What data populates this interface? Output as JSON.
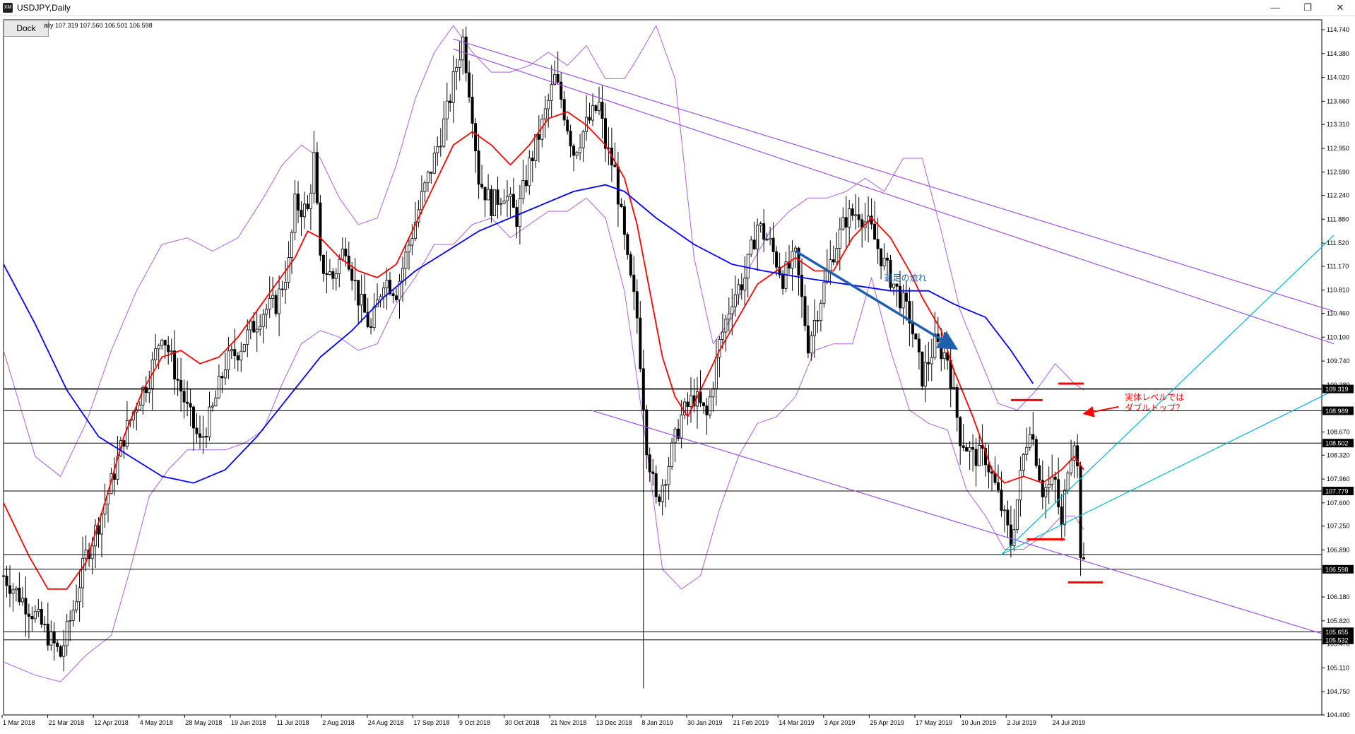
{
  "window": {
    "title": "USDJPY,Daily",
    "logo_text": "XM",
    "minimize_label": "—",
    "restore_label": "❐",
    "close_label": "✕"
  },
  "toolbar": {
    "dock_label": "Dock"
  },
  "header": {
    "ohlc_text": "aily  107.319 107.560 106.501 106.598"
  },
  "colors": {
    "ma_short": "#ff0000",
    "ma_long": "#0000ff",
    "bollinger": "#b060e0",
    "channel": "#a050e0",
    "trend_cyan": "#00b4d8",
    "arrow": "#1f5fb0",
    "annotation": "#ff0000"
  },
  "chart_data": {
    "type": "candlestick",
    "symbol": "USDJPY",
    "timeframe": "Daily",
    "ylim": [
      104.4,
      114.89
    ],
    "y_ticks": [
      "114.740",
      "114.380",
      "114.020",
      "113.660",
      "113.310",
      "112.950",
      "112.590",
      "112.240",
      "111.880",
      "111.520",
      "111.170",
      "110.810",
      "110.460",
      "110.100",
      "109.740",
      "109.380",
      "108.670",
      "108.320",
      "107.960",
      "107.600",
      "107.250",
      "106.890",
      "106.180",
      "105.820",
      "105.470",
      "105.110",
      "104.750",
      "104.400"
    ],
    "x_ticks": [
      "1 Mar 2018",
      "21 Mar 2018",
      "12 Apr 2018",
      "4 May 2018",
      "28 May 2018",
      "19 Jun 2018",
      "11 Jul 2018",
      "2 Aug 2018",
      "24 Aug 2018",
      "17 Sep 2018",
      "9 Oct 2018",
      "30 Oct 2018",
      "21 Nov 2018",
      "13 Dec 2018",
      "8 Jan 2019",
      "30 Jan 2019",
      "21 Feb 2019",
      "14 Mar 2019",
      "3 Apr 2019",
      "25 Apr 2019",
      "17 May 2019",
      "10 Jun 2019",
      "2 Jul 2019",
      "24 Jul 2019"
    ],
    "price_levels": [
      {
        "label": "109.319",
        "value": 109.319
      },
      {
        "label": "108.989",
        "value": 108.989
      },
      {
        "label": "108.502",
        "value": 108.502
      },
      {
        "label": "107.779",
        "value": 107.779
      },
      {
        "label": "106.598",
        "value": 106.598
      },
      {
        "label": "105.655",
        "value": 105.655
      },
      {
        "label": "105.532",
        "value": 105.532
      }
    ],
    "extra_level": 106.82,
    "last_price": 106.598,
    "weekly_label": "週足の流れ",
    "annotation": [
      "実体レベルでは",
      "ダブルトップ？"
    ],
    "close_path": [
      [
        0,
        106.5
      ],
      [
        5,
        106.2
      ],
      [
        10,
        105.9
      ],
      [
        14,
        105.6
      ],
      [
        18,
        105.3
      ],
      [
        22,
        106.0
      ],
      [
        26,
        106.8
      ],
      [
        30,
        107.3
      ],
      [
        34,
        107.9
      ],
      [
        38,
        108.6
      ],
      [
        42,
        109.1
      ],
      [
        46,
        109.5
      ],
      [
        50,
        110.2
      ],
      [
        54,
        109.6
      ],
      [
        58,
        109.0
      ],
      [
        62,
        108.5
      ],
      [
        66,
        109.0
      ],
      [
        70,
        109.7
      ],
      [
        74,
        109.9
      ],
      [
        78,
        110.2
      ],
      [
        82,
        110.5
      ],
      [
        86,
        110.6
      ],
      [
        90,
        111.2
      ],
      [
        92,
        112.1
      ],
      [
        96,
        112.0
      ],
      [
        98,
        112.8
      ],
      [
        100,
        111.2
      ],
      [
        104,
        111.0
      ],
      [
        108,
        111.5
      ],
      [
        112,
        110.7
      ],
      [
        116,
        110.2
      ],
      [
        120,
        111.0
      ],
      [
        124,
        110.8
      ],
      [
        128,
        111.5
      ],
      [
        132,
        112.2
      ],
      [
        136,
        112.8
      ],
      [
        140,
        113.5
      ],
      [
        143,
        114.2
      ],
      [
        145,
        114.6
      ],
      [
        148,
        113.5
      ],
      [
        150,
        112.5
      ],
      [
        154,
        112.1
      ],
      [
        158,
        112.3
      ],
      [
        162,
        111.9
      ],
      [
        166,
        112.7
      ],
      [
        170,
        113.3
      ],
      [
        174,
        114.0
      ],
      [
        176,
        113.7
      ],
      [
        180,
        112.9
      ],
      [
        184,
        113.3
      ],
      [
        188,
        113.6
      ],
      [
        190,
        113.0
      ],
      [
        193,
        112.6
      ],
      [
        197,
        111.2
      ],
      [
        200,
        110.4
      ],
      [
        203,
        108.5
      ],
      [
        206,
        107.6
      ],
      [
        210,
        108.2
      ],
      [
        214,
        108.9
      ],
      [
        218,
        109.2
      ],
      [
        222,
        108.9
      ],
      [
        226,
        110.0
      ],
      [
        230,
        110.7
      ],
      [
        234,
        111.0
      ],
      [
        238,
        111.8
      ],
      [
        242,
        111.5
      ],
      [
        246,
        111.0
      ],
      [
        250,
        111.3
      ],
      [
        254,
        110.0
      ],
      [
        258,
        110.7
      ],
      [
        262,
        111.4
      ],
      [
        266,
        111.9
      ],
      [
        270,
        112.0
      ],
      [
        274,
        111.7
      ],
      [
        278,
        111.2
      ],
      [
        282,
        110.8
      ],
      [
        286,
        110.4
      ],
      [
        290,
        109.5
      ],
      [
        294,
        110.0
      ],
      [
        298,
        109.8
      ],
      [
        302,
        108.6
      ],
      [
        306,
        108.3
      ],
      [
        310,
        108.3
      ],
      [
        314,
        107.7
      ],
      [
        318,
        107.0
      ],
      [
        322,
        108.3
      ],
      [
        324,
        108.8
      ],
      [
        328,
        107.8
      ],
      [
        332,
        107.9
      ],
      [
        334,
        107.2
      ],
      [
        336,
        108.2
      ],
      [
        338,
        108.6
      ],
      [
        339,
        108.1
      ],
      [
        340,
        106.9
      ],
      [
        341,
        106.6
      ]
    ],
    "ma_short_path": [
      [
        0,
        107.6
      ],
      [
        8,
        106.8
      ],
      [
        14,
        106.3
      ],
      [
        20,
        106.3
      ],
      [
        26,
        106.7
      ],
      [
        32,
        107.6
      ],
      [
        38,
        108.6
      ],
      [
        44,
        109.3
      ],
      [
        50,
        109.8
      ],
      [
        56,
        109.9
      ],
      [
        62,
        109.7
      ],
      [
        68,
        109.8
      ],
      [
        74,
        110.1
      ],
      [
        80,
        110.5
      ],
      [
        86,
        110.9
      ],
      [
        92,
        111.3
      ],
      [
        96,
        111.7
      ],
      [
        100,
        111.6
      ],
      [
        106,
        111.3
      ],
      [
        112,
        111.1
      ],
      [
        118,
        111.0
      ],
      [
        124,
        111.2
      ],
      [
        130,
        111.8
      ],
      [
        136,
        112.4
      ],
      [
        142,
        113.0
      ],
      [
        148,
        113.2
      ],
      [
        154,
        113.0
      ],
      [
        160,
        112.7
      ],
      [
        166,
        113.0
      ],
      [
        172,
        113.4
      ],
      [
        178,
        113.5
      ],
      [
        184,
        113.3
      ],
      [
        190,
        113.0
      ],
      [
        196,
        112.5
      ],
      [
        200,
        111.8
      ],
      [
        204,
        110.8
      ],
      [
        208,
        109.8
      ],
      [
        212,
        109.2
      ],
      [
        216,
        108.9
      ],
      [
        220,
        109.3
      ],
      [
        226,
        109.9
      ],
      [
        232,
        110.4
      ],
      [
        238,
        110.9
      ],
      [
        244,
        111.1
      ],
      [
        250,
        111.3
      ],
      [
        256,
        111.1
      ],
      [
        262,
        111.1
      ],
      [
        268,
        111.6
      ],
      [
        274,
        111.9
      ],
      [
        280,
        111.6
      ],
      [
        286,
        111.1
      ],
      [
        290,
        110.7
      ],
      [
        296,
        110.2
      ],
      [
        300,
        109.6
      ],
      [
        306,
        108.9
      ],
      [
        312,
        108.1
      ],
      [
        316,
        107.9
      ],
      [
        322,
        108.0
      ],
      [
        328,
        107.9
      ],
      [
        334,
        108.1
      ],
      [
        338,
        108.3
      ],
      [
        341,
        108.1
      ]
    ],
    "ma_long_path": [
      [
        0,
        111.2
      ],
      [
        10,
        110.3
      ],
      [
        20,
        109.3
      ],
      [
        30,
        108.6
      ],
      [
        40,
        108.3
      ],
      [
        50,
        108.0
      ],
      [
        60,
        107.9
      ],
      [
        70,
        108.1
      ],
      [
        80,
        108.6
      ],
      [
        90,
        109.2
      ],
      [
        100,
        109.8
      ],
      [
        110,
        110.2
      ],
      [
        120,
        110.7
      ],
      [
        130,
        111.1
      ],
      [
        140,
        111.4
      ],
      [
        150,
        111.7
      ],
      [
        160,
        111.9
      ],
      [
        170,
        112.1
      ],
      [
        180,
        112.3
      ],
      [
        190,
        112.4
      ],
      [
        196,
        112.3
      ],
      [
        206,
        111.9
      ],
      [
        218,
        111.5
      ],
      [
        230,
        111.2
      ],
      [
        240,
        111.1
      ],
      [
        252,
        111.0
      ],
      [
        266,
        110.9
      ],
      [
        280,
        110.8
      ],
      [
        292,
        110.8
      ],
      [
        300,
        110.6
      ],
      [
        310,
        110.4
      ],
      [
        318,
        109.9
      ],
      [
        325,
        109.4
      ]
    ],
    "boll_upper_path": [
      [
        0,
        109.9
      ],
      [
        10,
        108.3
      ],
      [
        18,
        108.0
      ],
      [
        26,
        108.8
      ],
      [
        34,
        109.9
      ],
      [
        42,
        110.8
      ],
      [
        50,
        111.5
      ],
      [
        58,
        111.6
      ],
      [
        66,
        111.4
      ],
      [
        74,
        111.6
      ],
      [
        82,
        112.2
      ],
      [
        88,
        112.7
      ],
      [
        94,
        113.0
      ],
      [
        100,
        112.8
      ],
      [
        106,
        112.2
      ],
      [
        112,
        111.8
      ],
      [
        118,
        111.9
      ],
      [
        124,
        112.7
      ],
      [
        130,
        113.7
      ],
      [
        136,
        114.4
      ],
      [
        142,
        114.8
      ],
      [
        148,
        114.4
      ],
      [
        154,
        114.1
      ],
      [
        160,
        114.1
      ],
      [
        166,
        114.2
      ],
      [
        172,
        114.4
      ],
      [
        178,
        114.2
      ],
      [
        184,
        114.5
      ],
      [
        190,
        114.0
      ],
      [
        196,
        114.0
      ],
      [
        200,
        114.3
      ],
      [
        206,
        114.8
      ],
      [
        212,
        114.0
      ],
      [
        218,
        111.3
      ],
      [
        224,
        110.0
      ],
      [
        230,
        110.4
      ],
      [
        236,
        111.2
      ],
      [
        242,
        111.7
      ],
      [
        248,
        112.0
      ],
      [
        254,
        112.2
      ],
      [
        260,
        112.2
      ],
      [
        266,
        112.3
      ],
      [
        272,
        112.5
      ],
      [
        278,
        112.3
      ],
      [
        284,
        112.8
      ],
      [
        290,
        112.8
      ],
      [
        296,
        111.7
      ],
      [
        302,
        110.5
      ],
      [
        308,
        109.8
      ],
      [
        314,
        109.1
      ],
      [
        320,
        109.0
      ],
      [
        326,
        109.3
      ],
      [
        332,
        109.7
      ],
      [
        338,
        109.4
      ],
      [
        341,
        109.3
      ]
    ],
    "boll_lower_path": [
      [
        0,
        105.2
      ],
      [
        10,
        105.0
      ],
      [
        18,
        104.9
      ],
      [
        26,
        105.3
      ],
      [
        34,
        105.6
      ],
      [
        40,
        106.6
      ],
      [
        46,
        107.7
      ],
      [
        52,
        108.1
      ],
      [
        58,
        108.4
      ],
      [
        64,
        108.4
      ],
      [
        70,
        108.4
      ],
      [
        76,
        108.5
      ],
      [
        82,
        108.7
      ],
      [
        88,
        109.4
      ],
      [
        94,
        110.0
      ],
      [
        100,
        110.2
      ],
      [
        106,
        110.1
      ],
      [
        112,
        109.9
      ],
      [
        118,
        110.0
      ],
      [
        124,
        110.6
      ],
      [
        130,
        111.0
      ],
      [
        136,
        111.5
      ],
      [
        142,
        111.5
      ],
      [
        148,
        111.8
      ],
      [
        154,
        111.9
      ],
      [
        160,
        111.6
      ],
      [
        166,
        111.8
      ],
      [
        172,
        112.0
      ],
      [
        178,
        112.0
      ],
      [
        184,
        112.2
      ],
      [
        190,
        111.9
      ],
      [
        196,
        110.8
      ],
      [
        202,
        108.8
      ],
      [
        208,
        106.6
      ],
      [
        214,
        106.3
      ],
      [
        220,
        106.5
      ],
      [
        226,
        107.5
      ],
      [
        232,
        108.3
      ],
      [
        238,
        108.8
      ],
      [
        244,
        108.9
      ],
      [
        250,
        109.2
      ],
      [
        256,
        109.9
      ],
      [
        262,
        110.0
      ],
      [
        268,
        110.0
      ],
      [
        274,
        111.0
      ],
      [
        280,
        109.9
      ],
      [
        286,
        109.0
      ],
      [
        292,
        108.8
      ],
      [
        298,
        108.7
      ],
      [
        304,
        107.8
      ],
      [
        310,
        107.4
      ],
      [
        316,
        106.9
      ],
      [
        322,
        106.9
      ],
      [
        328,
        107.1
      ],
      [
        334,
        107.4
      ],
      [
        338,
        107.4
      ],
      [
        341,
        107.2
      ]
    ],
    "channel_lines": [
      {
        "from": [
          142,
          114.6
        ],
        "to": [
          420,
          110.49
        ]
      },
      {
        "from": [
          142,
          114.45
        ],
        "to": [
          420,
          110.0
        ]
      },
      {
        "from": [
          186,
          108.99
        ],
        "to": [
          420,
          105.57
        ]
      }
    ],
    "cyan_lines": [
      {
        "from": [
          315,
          106.82
        ],
        "to": [
          420,
          111.64
        ]
      },
      {
        "from": [
          315,
          106.82
        ],
        "to": [
          420,
          109.3
        ]
      }
    ]
  }
}
